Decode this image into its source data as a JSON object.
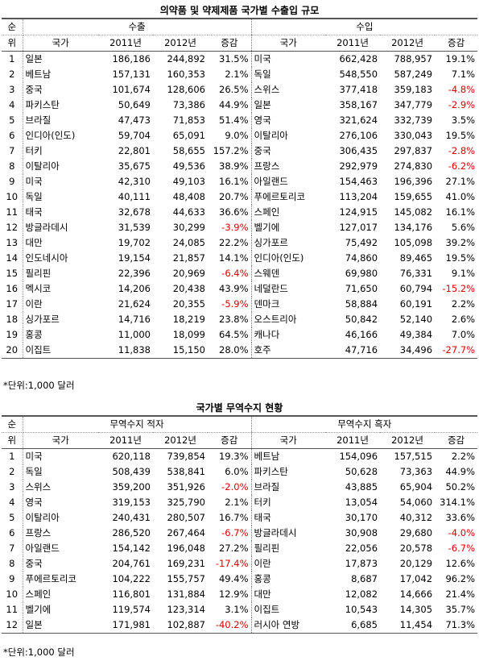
{
  "tables": [
    {
      "title": "의약품 및 약제제품 국가별 수출입 규모",
      "corner": [
        "순",
        "위"
      ],
      "groups": [
        "수출",
        "수입"
      ],
      "columns": [
        "국가",
        "2011년",
        "2012년",
        "증감"
      ],
      "rows": [
        [
          1,
          "일본",
          "186,186",
          "244,892",
          "31.5%",
          "미국",
          "662,428",
          "788,957",
          "19.1%"
        ],
        [
          2,
          "베트남",
          "157,131",
          "160,353",
          "2.1%",
          "독일",
          "548,550",
          "587,249",
          "7.1%"
        ],
        [
          3,
          "중국",
          "101,674",
          "128,606",
          "26.5%",
          "스위스",
          "377,418",
          "359,183",
          "-4.8%"
        ],
        [
          4,
          "파키스탄",
          "50,649",
          "73,386",
          "44.9%",
          "일본",
          "358,167",
          "347,779",
          "-2.9%"
        ],
        [
          5,
          "브라질",
          "47,473",
          "71,853",
          "51.4%",
          "영국",
          "321,624",
          "332,739",
          "3.5%"
        ],
        [
          6,
          "인디아(인도)",
          "59,704",
          "65,091",
          "9.0%",
          "이탈리아",
          "276,106",
          "330,043",
          "19.5%"
        ],
        [
          7,
          "터키",
          "22,801",
          "58,655",
          "157.2%",
          "중국",
          "306,435",
          "297,837",
          "-2.8%"
        ],
        [
          8,
          "이탈리아",
          "35,675",
          "49,536",
          "38.9%",
          "프랑스",
          "292,979",
          "274,830",
          "-6.2%"
        ],
        [
          9,
          "미국",
          "42,310",
          "49,103",
          "16.1%",
          "아일랜드",
          "154,463",
          "196,396",
          "27.1%"
        ],
        [
          10,
          "독일",
          "40,111",
          "48,408",
          "20.7%",
          "푸에르토리코",
          "113,204",
          "159,655",
          "41.0%"
        ],
        [
          11,
          "태국",
          "32,678",
          "44,633",
          "36.6%",
          "스페인",
          "124,915",
          "145,082",
          "16.1%"
        ],
        [
          12,
          "방글라데시",
          "31,539",
          "30,299",
          "-3.9%",
          "벨기에",
          "127,017",
          "134,176",
          "5.6%"
        ],
        [
          13,
          "대만",
          "19,702",
          "24,085",
          "22.2%",
          "싱가포르",
          "75,492",
          "105,098",
          "39.2%"
        ],
        [
          14,
          "인도네시아",
          "19,154",
          "21,857",
          "14.1%",
          "인디아(인도)",
          "74,860",
          "89,465",
          "19.5%"
        ],
        [
          15,
          "필리핀",
          "22,396",
          "20,969",
          "-6.4%",
          "스웨덴",
          "69,980",
          "76,331",
          "9.1%"
        ],
        [
          16,
          "멕시코",
          "14,206",
          "20,438",
          "43.9%",
          "네덜란드",
          "71,650",
          "60,794",
          "-15.2%"
        ],
        [
          17,
          "이란",
          "21,624",
          "20,355",
          "-5.9%",
          "덴마크",
          "58,884",
          "60,191",
          "2.2%"
        ],
        [
          18,
          "싱가포르",
          "14,716",
          "18,219",
          "23.8%",
          "오스트리아",
          "50,842",
          "52,140",
          "2.6%"
        ],
        [
          19,
          "홍콩",
          "11,000",
          "18,099",
          "64.5%",
          "캐나다",
          "46,166",
          "49,384",
          "7.0%"
        ],
        [
          20,
          "이집트",
          "11,838",
          "15,150",
          "28.0%",
          "호주",
          "47,716",
          "34,496",
          "-27.7%"
        ]
      ],
      "note": "*단위:1,000 달러"
    },
    {
      "title": "국가별 무역수지 현황",
      "corner": [
        "순",
        "위"
      ],
      "groups": [
        "무역수지 적자",
        "무역수지 흑자"
      ],
      "columns": [
        "국가",
        "2011년",
        "2012년",
        "증감"
      ],
      "rows": [
        [
          1,
          "미국",
          "620,118",
          "739,854",
          "19.3%",
          "베트남",
          "154,096",
          "157,515",
          "2.2%"
        ],
        [
          2,
          "독일",
          "508,439",
          "538,841",
          "6.0%",
          "파키스탄",
          "50,628",
          "73,363",
          "44.9%"
        ],
        [
          3,
          "스위스",
          "359,200",
          "351,926",
          "-2.0%",
          "브라질",
          "43,885",
          "65,904",
          "50.2%"
        ],
        [
          4,
          "영국",
          "319,153",
          "325,790",
          "2.1%",
          "터키",
          "13,054",
          "54,060",
          "314.1%"
        ],
        [
          5,
          "이탈리아",
          "240,431",
          "280,507",
          "16.7%",
          "태국",
          "30,170",
          "40,312",
          "33.6%"
        ],
        [
          6,
          "프랑스",
          "286,520",
          "267,464",
          "-6.7%",
          "방글라데시",
          "30,908",
          "29,680",
          "-4.0%"
        ],
        [
          7,
          "아일랜드",
          "154,142",
          "196,048",
          "27.2%",
          "필리핀",
          "22,056",
          "20,578",
          "-6.7%"
        ],
        [
          8,
          "중국",
          "204,761",
          "169,231",
          "-17.4%",
          "이란",
          "17,873",
          "20,129",
          "12.6%"
        ],
        [
          9,
          "푸에르토리코",
          "104,222",
          "155,757",
          "49.4%",
          "홍콩",
          "8,687",
          "17,042",
          "96.2%"
        ],
        [
          10,
          "스페인",
          "116,801",
          "131,884",
          "12.9%",
          "대만",
          "12,082",
          "14,666",
          "21.4%"
        ],
        [
          11,
          "벨기에",
          "119,574",
          "123,314",
          "3.1%",
          "이집트",
          "10,543",
          "14,305",
          "35.7%"
        ],
        [
          12,
          "일본",
          "171,981",
          "102,887",
          "-40.2%",
          "러시아 연방",
          "6,685",
          "11,454",
          "71.3%"
        ]
      ],
      "note": "*단위:1,000 달러"
    }
  ]
}
